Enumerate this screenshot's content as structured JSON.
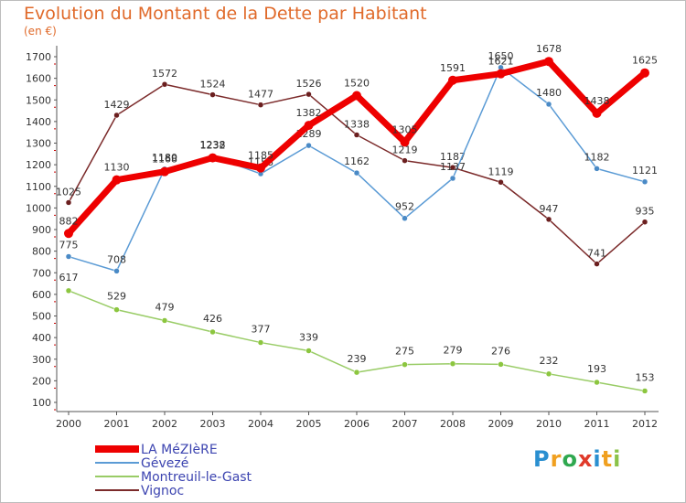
{
  "title": "Evolution du Montant de la Dette par Habitant",
  "unit": "(en €)",
  "logo": {
    "letters": [
      "P",
      "r",
      "o",
      "x",
      "i",
      "t",
      "i"
    ],
    "colors": [
      "#2a8fd0",
      "#f0a020",
      "#2fa84f",
      "#e03a2a",
      "#2a8fd0",
      "#f0a020",
      "#8bc34a"
    ]
  },
  "chart_data": {
    "type": "line",
    "categories": [
      "2000",
      "2001",
      "2002",
      "2003",
      "2004",
      "2005",
      "2006",
      "2007",
      "2008",
      "2009",
      "2010",
      "2011",
      "2012"
    ],
    "ylim": [
      100,
      1700
    ],
    "yticks": [
      100,
      200,
      300,
      400,
      500,
      600,
      700,
      800,
      900,
      1000,
      1100,
      1200,
      1300,
      1400,
      1500,
      1600,
      1700
    ],
    "grid": false,
    "legend_position": "bottom-left",
    "series": [
      {
        "name": "Montreuil-le-Gast",
        "color": "#99cc66",
        "width": 1.5,
        "dot": "#8cc63f",
        "values": [
          617,
          529,
          479,
          426,
          377,
          339,
          239,
          275,
          279,
          276,
          232,
          193,
          153
        ]
      },
      {
        "name": "Vignoc",
        "color": "#7b2a2a",
        "width": 1.5,
        "dot": "#6b1f1f",
        "values": [
          1025,
          1429,
          1572,
          1524,
          1477,
          1526,
          1338,
          1219,
          1187,
          1119,
          947,
          741,
          935
        ]
      },
      {
        "name": "Gévezé",
        "color": "#5b9bd5",
        "width": 1.5,
        "dot": "#4a8ac6",
        "values": [
          775,
          708,
          1180,
          1238,
          1158,
          1289,
          1162,
          952,
          1137,
          1650,
          1480,
          1182,
          1121
        ]
      },
      {
        "name": "LA MéZIèRE",
        "color": "#ee0000",
        "width": 7,
        "dot": "#ee0000",
        "values": [
          882,
          1130,
          1168,
          1232,
          1185,
          1382,
          1520,
          1305,
          1591,
          1621,
          1678,
          1438,
          1625
        ]
      }
    ],
    "legend_order": [
      "LA MéZIèRE",
      "Gévezé",
      "Montreuil-le-Gast",
      "Vignoc"
    ]
  }
}
